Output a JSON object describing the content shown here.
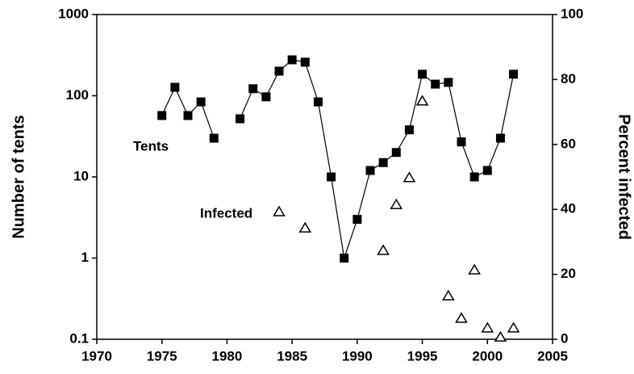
{
  "chart_data": {
    "type": "scatter",
    "y_scale": "log",
    "y_label": "Number of tents",
    "y2_label": "Percent infected",
    "xlim": [
      1970,
      2005
    ],
    "xticks": [
      1970,
      1975,
      1980,
      1985,
      1990,
      1995,
      2000,
      2005
    ],
    "ylim": [
      0.1,
      1000
    ],
    "yticks": [
      0.1,
      1,
      10,
      100,
      1000
    ],
    "y2lim": [
      0,
      100
    ],
    "y2ticks": [
      0,
      20,
      40,
      60,
      80,
      100
    ],
    "annotations": [
      {
        "text": "Tents"
      },
      {
        "text": "Infected"
      }
    ],
    "series": [
      {
        "name": "Tents",
        "color": "#000000",
        "marker": "square",
        "line": true,
        "x": [
          1975,
          1976,
          1977,
          1978,
          1979,
          1980,
          1981,
          1982,
          1983,
          1984,
          1985,
          1986,
          1987,
          1988,
          1989,
          1990,
          1991,
          1992,
          1993,
          1994,
          1995,
          1996,
          1997,
          1998,
          1999,
          2000,
          2001,
          2002
        ],
        "values": [
          57,
          127,
          57,
          84,
          30,
          null,
          52,
          122,
          97,
          201,
          277,
          259,
          84,
          10,
          1,
          3,
          12,
          15,
          20,
          38,
          184,
          139,
          146,
          27,
          10,
          12,
          30,
          184
        ]
      },
      {
        "name": "Infected",
        "color": "#000000",
        "marker": "triangle-open",
        "line": false,
        "axis": "y2",
        "x": [
          1984,
          1986,
          1992,
          1993,
          1994,
          1995,
          1997,
          1998,
          1999,
          2000,
          2001,
          2002
        ],
        "values": [
          39.3,
          34.3,
          27.4,
          41.5,
          49.8,
          73.4,
          13.4,
          6.5,
          21.4,
          3.5,
          0.7,
          3.5
        ]
      }
    ]
  }
}
